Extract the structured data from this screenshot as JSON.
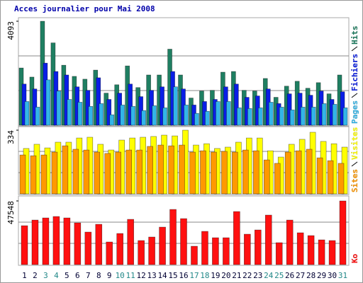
{
  "chart_data": [
    {
      "type": "bar",
      "title": "Acces journalier pour Mai 2008",
      "ylim": [
        0,
        4093
      ],
      "yticks": [
        4093
      ],
      "series": [
        {
          "name": "Pages",
          "color": "#33b5e8",
          "values": [
            934,
            714,
            1786,
            1346,
            1016,
            907,
            742,
            852,
            412,
            797,
            742,
            577,
            769,
            687,
            1511,
            797,
            467,
            549,
            934,
            934,
            687,
            659,
            687,
            907,
            714,
            604,
            714,
            714,
            852,
            824,
            687
          ]
        },
        {
          "name": "Fichiers",
          "color": "#0a1ee6",
          "values": [
            1621,
            1428,
            2445,
            2115,
            1978,
            1511,
            1374,
            1868,
            1016,
            1264,
            1621,
            1126,
            1374,
            1511,
            2115,
            1428,
            797,
            934,
            1016,
            1511,
            1621,
            1099,
            1154,
            1428,
            852,
            1236,
            1264,
            1181,
            1346,
            1016,
            1319
          ]
        },
        {
          "name": "Hits",
          "color": "#1f7f62",
          "values": [
            2253,
            1895,
            4093,
            3241,
            2362,
            1923,
            1813,
            2170,
            1264,
            1593,
            2335,
            1483,
            1978,
            1978,
            2994,
            1978,
            1071,
            1346,
            1374,
            2088,
            2115,
            1374,
            1346,
            1840,
            1099,
            1538,
            1731,
            1456,
            1676,
            1236,
            1978
          ]
        }
      ]
    },
    {
      "type": "bar",
      "ylim": [
        0,
        334
      ],
      "yticks": [
        334
      ],
      "series": [
        {
          "name": "Sites",
          "color": "#ff9900",
          "values": [
            204,
            200,
            204,
            219,
            252,
            234,
            230,
            219,
            212,
            219,
            230,
            230,
            249,
            256,
            252,
            256,
            219,
            226,
            219,
            223,
            219,
            230,
            226,
            178,
            160,
            219,
            226,
            234,
            189,
            174,
            160
          ]
        },
        {
          "name": "Visites",
          "color": "#ffff00",
          "values": [
            238,
            260,
            241,
            271,
            271,
            293,
            297,
            260,
            230,
            282,
            293,
            297,
            301,
            308,
            304,
            334,
            256,
            263,
            238,
            245,
            271,
            293,
            293,
            226,
            193,
            260,
            286,
            323,
            275,
            263,
            245
          ]
        }
      ]
    },
    {
      "type": "bar",
      "ylim": [
        0,
        47548
      ],
      "yticks": [
        47548
      ],
      "categories": [
        "1",
        "2",
        "3",
        "4",
        "5",
        "6",
        "7",
        "8",
        "9",
        "10",
        "11",
        "12",
        "13",
        "14",
        "15",
        "16",
        "17",
        "18",
        "19",
        "20",
        "21",
        "22",
        "23",
        "24",
        "25",
        "26",
        "27",
        "28",
        "29",
        "30",
        "31"
      ],
      "category_colors": [
        "#000033",
        "#000033",
        "#228888",
        "#228888",
        "#000033",
        "#000033",
        "#000033",
        "#000033",
        "#000033",
        "#228888",
        "#228888",
        "#000033",
        "#000033",
        "#000033",
        "#000033",
        "#000033",
        "#228888",
        "#228888",
        "#000033",
        "#000033",
        "#000033",
        "#000033",
        "#000033",
        "#228888",
        "#228888",
        "#000033",
        "#000033",
        "#000033",
        "#000033",
        "#000033",
        "#228888"
      ],
      "series": [
        {
          "name": "Ko",
          "color": "#ff1010",
          "values": [
            29057,
            33283,
            34868,
            35924,
            34868,
            31170,
            24302,
            30113,
            16906,
            23245,
            33811,
            17962,
            20604,
            28000,
            41207,
            34340,
            13736,
            24830,
            20075,
            20075,
            39623,
            22717,
            25887,
            36981,
            16377,
            33283,
            23774,
            21660,
            18491,
            17962,
            47548
          ]
        }
      ]
    }
  ]
}
